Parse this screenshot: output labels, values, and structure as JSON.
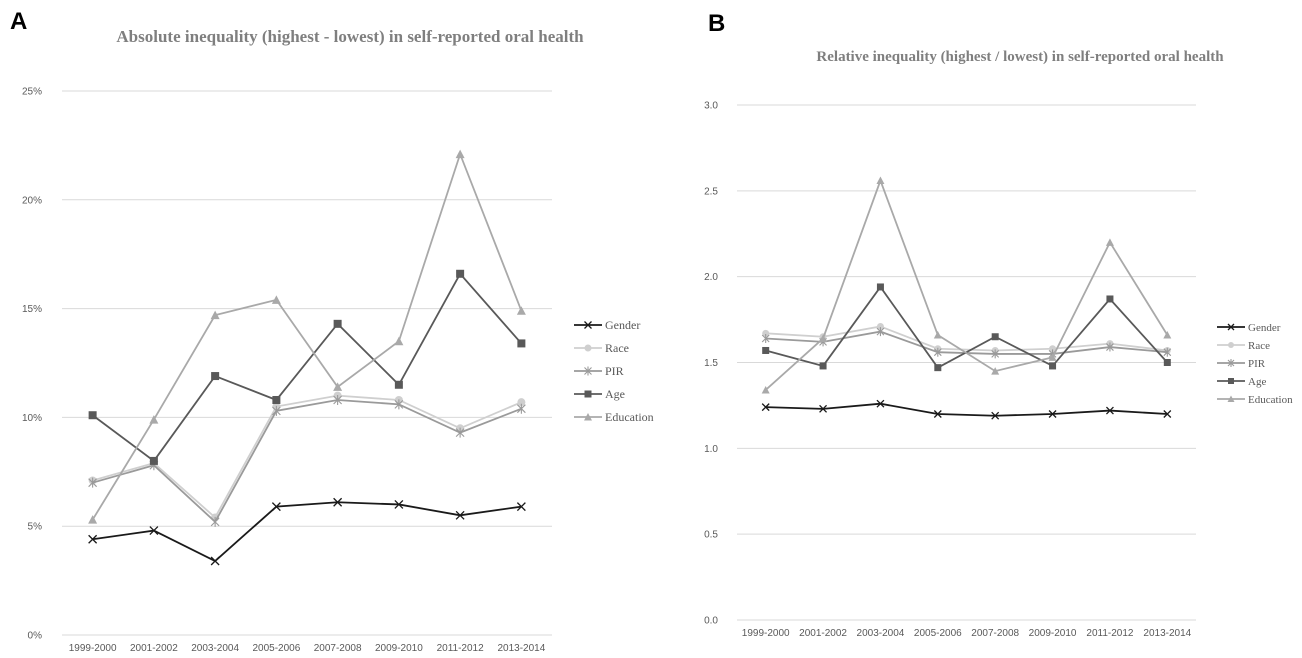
{
  "panels": {
    "a": {
      "letter": "A"
    },
    "b": {
      "letter": "B"
    }
  },
  "colors": {
    "gender": "#1a1a1a",
    "race": "#cfcfcf",
    "pir": "#9a9a9a",
    "age": "#595959",
    "education": "#a9a9a9",
    "grid": "#d9d9d9",
    "title": "#7f7f7f"
  },
  "chart_data": [
    {
      "type": "line",
      "title": "Absolute inequality (highest - lowest) in self-reported oral health",
      "x": [
        "1999-2000",
        "2001-2002",
        "2003-2004",
        "2005-2006",
        "2007-2008",
        "2009-2010",
        "2011-2012",
        "2013-2014"
      ],
      "ylim": [
        0,
        25
      ],
      "yticks": [
        "0%",
        "5%",
        "10%",
        "15%",
        "20%",
        "25%"
      ],
      "grid": true,
      "legend": "right",
      "series": [
        {
          "name": "Gender",
          "marker": "x",
          "values": [
            4.4,
            4.8,
            3.4,
            5.9,
            6.1,
            6.0,
            5.5,
            5.9
          ]
        },
        {
          "name": "Race",
          "marker": "circle",
          "values": [
            7.1,
            7.9,
            5.4,
            10.5,
            11.0,
            10.8,
            9.5,
            10.7
          ]
        },
        {
          "name": "PIR",
          "marker": "star",
          "values": [
            7.0,
            7.8,
            5.2,
            10.3,
            10.8,
            10.6,
            9.3,
            10.4
          ]
        },
        {
          "name": "Age",
          "marker": "square",
          "values": [
            10.1,
            8.0,
            11.9,
            10.8,
            14.3,
            11.5,
            16.6,
            13.4
          ]
        },
        {
          "name": "Education",
          "marker": "triangle",
          "values": [
            5.3,
            9.9,
            14.7,
            15.4,
            11.4,
            13.5,
            22.1,
            14.9
          ]
        }
      ]
    },
    {
      "type": "line",
      "title": "Relative inequality (highest / lowest) in self-reported oral health",
      "x": [
        "1999-2000",
        "2001-2002",
        "2003-2004",
        "2005-2006",
        "2007-2008",
        "2009-2010",
        "2011-2012",
        "2013-2014"
      ],
      "ylim": [
        0,
        3
      ],
      "yticks": [
        "0.0",
        "0.5",
        "1.0",
        "1.5",
        "2.0",
        "2.5",
        "3.0"
      ],
      "grid": true,
      "legend": "right",
      "series": [
        {
          "name": "Gender",
          "marker": "x",
          "values": [
            1.24,
            1.23,
            1.26,
            1.2,
            1.19,
            1.2,
            1.22,
            1.2
          ]
        },
        {
          "name": "Race",
          "marker": "circle",
          "values": [
            1.67,
            1.65,
            1.71,
            1.58,
            1.57,
            1.58,
            1.61,
            1.57
          ]
        },
        {
          "name": "PIR",
          "marker": "star",
          "values": [
            1.64,
            1.62,
            1.68,
            1.56,
            1.55,
            1.55,
            1.59,
            1.56
          ]
        },
        {
          "name": "Age",
          "marker": "square",
          "values": [
            1.57,
            1.48,
            1.94,
            1.47,
            1.65,
            1.48,
            1.87,
            1.5
          ]
        },
        {
          "name": "Education",
          "marker": "triangle",
          "values": [
            1.34,
            1.64,
            2.56,
            1.66,
            1.45,
            1.53,
            2.2,
            1.66
          ]
        }
      ]
    }
  ]
}
